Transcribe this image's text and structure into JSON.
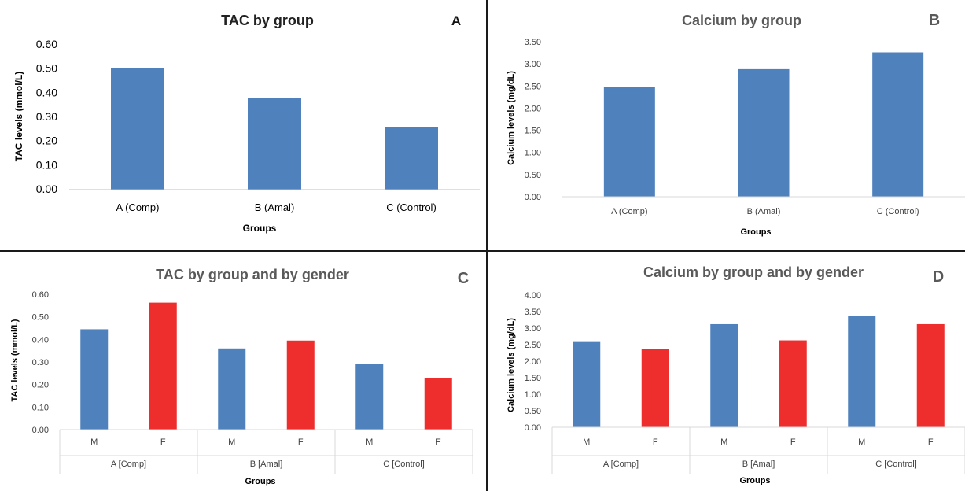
{
  "chart_data": [
    {
      "type": "bar",
      "title": "TAC by group",
      "panel_label": "A",
      "xlabel": "Groups",
      "ylabel": "TAC levels (mmol/L)",
      "ylim": [
        0,
        0.6
      ],
      "y_ticks": [
        "0.00",
        "0.10",
        "0.20",
        "0.30",
        "0.40",
        "0.50",
        "0.60"
      ],
      "categories": [
        "A (Comp)",
        "B (Amal)",
        "C (Control)"
      ],
      "values": [
        0.505,
        0.38,
        0.258
      ],
      "colors": [
        "#4F81BD"
      ],
      "grid": false
    },
    {
      "type": "bar",
      "title": "Calcium by group",
      "panel_label": "B",
      "xlabel": "Groups",
      "ylabel": "Calcium levels (mg/dL)",
      "ylim": [
        0,
        3.5
      ],
      "y_ticks": [
        "0.00",
        "0.50",
        "1.00",
        "1.50",
        "2.00",
        "2.50",
        "3.00",
        "3.50"
      ],
      "categories": [
        "A (Comp)",
        "B (Amal)",
        "C (Control)"
      ],
      "values": [
        2.47,
        2.88,
        3.26
      ],
      "colors": [
        "#4F81BD"
      ],
      "grid": false
    },
    {
      "type": "bar",
      "title": "TAC by group and by gender",
      "panel_label": "C",
      "xlabel": "Groups",
      "ylabel": "TAC levels (mmol/L)",
      "ylim": [
        0,
        0.6
      ],
      "y_ticks": [
        "0.00",
        "0.10",
        "0.20",
        "0.30",
        "0.40",
        "0.50",
        "0.60"
      ],
      "groups": [
        "A [Comp]",
        "B [Amal]",
        "C [Control]"
      ],
      "categories": [
        "M",
        "F",
        "M",
        "F",
        "M",
        "F"
      ],
      "values": [
        0.445,
        0.563,
        0.36,
        0.395,
        0.29,
        0.228
      ],
      "colors": [
        "#4F81BD",
        "#EE2D2D"
      ],
      "grid": false
    },
    {
      "type": "bar",
      "title": "Calcium by group and by gender",
      "panel_label": "D",
      "xlabel": "Groups",
      "ylabel": "Calcium levels (mg/dL)",
      "ylim": [
        0,
        4
      ],
      "y_ticks": [
        "0.00",
        "0.50",
        "1.00",
        "1.50",
        "2.00",
        "2.50",
        "3.00",
        "3.50",
        "4.00"
      ],
      "groups": [
        "A [Comp]",
        "B [Amal]",
        "C [Control]"
      ],
      "categories": [
        "M",
        "F",
        "M",
        "F",
        "M",
        "F"
      ],
      "values": [
        2.58,
        2.38,
        3.12,
        2.63,
        3.38,
        3.12
      ],
      "colors": [
        "#4F81BD",
        "#EE2D2D"
      ],
      "grid": false
    }
  ]
}
